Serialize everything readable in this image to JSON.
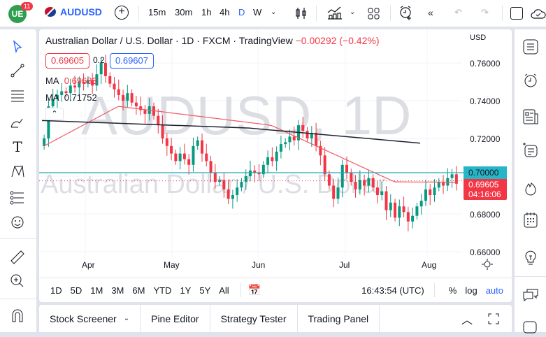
{
  "topbar": {
    "logo_text": "UE",
    "notifications": "11",
    "symbol": "AUDUSD",
    "intervals": [
      "15m",
      "30m",
      "1h",
      "4h",
      "D",
      "W"
    ],
    "active_interval": "D"
  },
  "chart": {
    "title": "Australian Dollar / U.S. Dollar · 1D · FXCM · TradingView",
    "change": "−0.00292 (−0.42%)",
    "sell_price": "0.69605",
    "spread": "0.2",
    "buy_price": "0.69607",
    "ma1_label": "MA",
    "ma1_value": "0.69683",
    "ma2_label": "MA",
    "ma2_value": "0.71752",
    "watermark_big": "AUDUSD, 1D",
    "watermark_small": "Australian Dollar / U.S. Dollar",
    "currency": "USD",
    "price_labels": [
      "0.76000",
      "0.74000",
      "0.72000",
      "0.70000",
      "0.68000",
      "0.66000"
    ],
    "line_label": "0.70000",
    "last_price": "0.69605",
    "countdown": "04:16:06",
    "x_labels": [
      "Apr",
      "May",
      "Jun",
      "Jul",
      "Aug"
    ],
    "colors": {
      "up": "#089981",
      "down": "#f23645",
      "ma_fast": "#f05a64",
      "ma_slow": "#1e222d",
      "hline": "#26a6b8"
    }
  },
  "range_bar": {
    "ranges": [
      "1D",
      "5D",
      "1M",
      "3M",
      "6M",
      "YTD",
      "1Y",
      "5Y",
      "All"
    ],
    "time": "16:43:54 (UTC)",
    "percent": "%",
    "log": "log",
    "auto": "auto"
  },
  "bottom_tabs": [
    "Stock Screener",
    "Pine Editor",
    "Strategy Tester",
    "Trading Panel"
  ],
  "chart_data": {
    "type": "candlestick",
    "title": "Australian Dollar / U.S. Dollar · 1D · FXCM",
    "x_labels": [
      "Apr",
      "May",
      "Jun",
      "Jul",
      "Aug"
    ],
    "y_ticks": [
      0.66,
      0.68,
      0.7,
      0.72,
      0.74,
      0.76
    ],
    "ylim": [
      0.655,
      0.765
    ],
    "last": 0.69605,
    "horizontal_line": 0.7,
    "ma_fast_last": 0.69683,
    "ma_slow_last": 0.71752
  }
}
